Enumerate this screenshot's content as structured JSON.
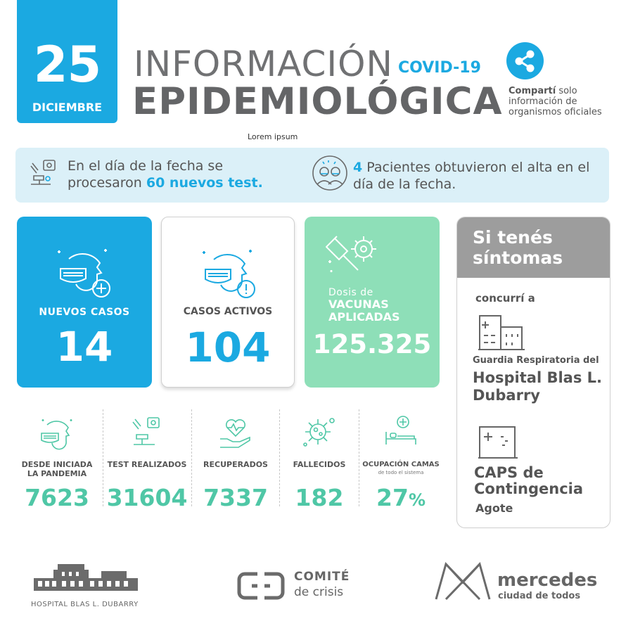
{
  "date": {
    "day": "25",
    "month": "DICIEMBRE"
  },
  "title": {
    "line1": "INFORMACIÓN",
    "tag": "COVID-19",
    "line2": "EPIDEMIOLÓGICA",
    "sub": "Lorem ipsum"
  },
  "share": {
    "bold": "Compartí",
    "rest": " solo información de organismos oficiales",
    "icon": "share-icon"
  },
  "banner": {
    "tests_pre": "En el día de la fecha se procesaron ",
    "tests_count": "60 nuevos test.",
    "alta_count": "4",
    "alta_text": " Pacientes obtuvieron el alta en el día de la fecha."
  },
  "cards": {
    "nuevos": {
      "label": "NUEVOS CASOS",
      "value": "14"
    },
    "activos": {
      "label": "CASOS ACTIVOS",
      "value": "104"
    },
    "vacunas": {
      "label_small": "Dosis de",
      "label_big": "VACUNAS APLICADAS",
      "value": "125.325"
    }
  },
  "symptoms": {
    "title": "Si tenés síntomas",
    "concurri": "concurrí a",
    "guardia": "Guardia Respiratoria del",
    "hospital": "Hospital Blas L. Dubarry",
    "caps": "CAPS de Contingencia",
    "agote": "Agote"
  },
  "stats": [
    {
      "label": "DESDE INICIADA LA PANDEMIA",
      "value": "7623",
      "icon": "mask-face-icon"
    },
    {
      "label": "TEST REALIZADOS",
      "value": "31604",
      "icon": "microscope-icon"
    },
    {
      "label": "RECUPERADOS",
      "value": "7337",
      "icon": "heart-hand-icon"
    },
    {
      "label": "FALLECIDOS",
      "value": "182",
      "icon": "virus-icon"
    },
    {
      "label": "OCUPACIÓN CAMAS",
      "sublabel": "de todo el sistema",
      "value": "27",
      "unit": "%",
      "icon": "hospital-bed-icon"
    }
  ],
  "footer": {
    "hospital": "HOSPITAL BLAS L. DUBARRY",
    "comite1": "COMITÉ",
    "comite2": "de crisis",
    "merc1": "mercedes",
    "merc2": "ciudad de todos"
  },
  "colors": {
    "blue": "#1ba9e1",
    "green": "#4fc7a6",
    "mint": "#8edfb8",
    "gray": "#9d9d9d"
  }
}
